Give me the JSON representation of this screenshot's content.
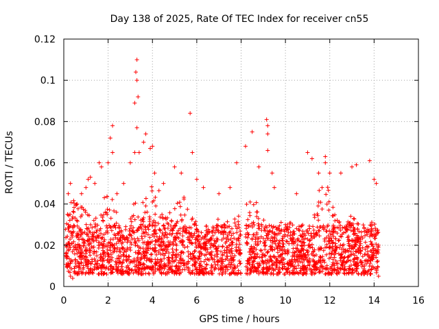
{
  "chart_data": {
    "type": "scatter",
    "title": "Day 138 of 2025, Rate Of TEC Index for receiver cn55",
    "xlabel": "GPS time / hours",
    "ylabel": "ROTI / TECUs",
    "xlim": [
      0,
      16
    ],
    "ylim": [
      0,
      0.12
    ],
    "xticks": [
      0,
      2,
      4,
      6,
      8,
      10,
      12,
      14,
      16
    ],
    "yticks": [
      0,
      0.02,
      0.04,
      0.06,
      0.08,
      0.1,
      0.12
    ],
    "xtick_labels": [
      "0",
      "2",
      "4",
      "6",
      "8",
      "10",
      "12",
      "14",
      "16"
    ],
    "ytick_labels": [
      "0",
      "0.02",
      "0.04",
      "0.06",
      "0.08",
      "0.1",
      "0.12"
    ],
    "grid": true,
    "marker": "+",
    "marker_color": "#ff0000",
    "data_gap_hours": [
      8.0,
      8.2
    ],
    "series": [
      {
        "name": "ROTI",
        "points": [
          [
            0.1,
            0.015
          ],
          [
            0.2,
            0.03
          ],
          [
            0.2,
            0.045
          ],
          [
            0.3,
            0.05
          ],
          [
            0.3,
            0.005
          ],
          [
            0.4,
            0.004
          ],
          [
            0.6,
            0.04
          ],
          [
            0.8,
            0.045
          ],
          [
            1.0,
            0.048
          ],
          [
            1.1,
            0.052
          ],
          [
            1.2,
            0.053
          ],
          [
            1.4,
            0.05
          ],
          [
            1.6,
            0.06
          ],
          [
            1.7,
            0.058
          ],
          [
            2.0,
            0.06
          ],
          [
            2.1,
            0.072
          ],
          [
            2.2,
            0.078
          ],
          [
            2.2,
            0.065
          ],
          [
            2.4,
            0.045
          ],
          [
            2.7,
            0.05
          ],
          [
            3.0,
            0.06
          ],
          [
            3.2,
            0.065
          ],
          [
            3.2,
            0.089
          ],
          [
            3.25,
            0.104
          ],
          [
            3.3,
            0.11
          ],
          [
            3.3,
            0.1
          ],
          [
            3.35,
            0.092
          ],
          [
            3.3,
            0.077
          ],
          [
            3.4,
            0.065
          ],
          [
            3.6,
            0.07
          ],
          [
            3.7,
            0.074
          ],
          [
            3.9,
            0.067
          ],
          [
            4.0,
            0.068
          ],
          [
            4.1,
            0.055
          ],
          [
            4.5,
            0.05
          ],
          [
            5.0,
            0.058
          ],
          [
            5.3,
            0.055
          ],
          [
            5.7,
            0.084
          ],
          [
            5.8,
            0.065
          ],
          [
            6.0,
            0.052
          ],
          [
            6.3,
            0.048
          ],
          [
            7.0,
            0.045
          ],
          [
            7.5,
            0.048
          ],
          [
            7.8,
            0.06
          ],
          [
            8.2,
            0.068
          ],
          [
            8.5,
            0.075
          ],
          [
            8.8,
            0.058
          ],
          [
            9.15,
            0.081
          ],
          [
            9.2,
            0.078
          ],
          [
            9.2,
            0.074
          ],
          [
            9.2,
            0.066
          ],
          [
            9.4,
            0.055
          ],
          [
            9.5,
            0.048
          ],
          [
            10.5,
            0.045
          ],
          [
            11.0,
            0.065
          ],
          [
            11.2,
            0.062
          ],
          [
            11.5,
            0.055
          ],
          [
            11.8,
            0.063
          ],
          [
            11.8,
            0.06
          ],
          [
            12.0,
            0.055
          ],
          [
            12.5,
            0.055
          ],
          [
            13.0,
            0.058
          ],
          [
            13.2,
            0.059
          ],
          [
            13.8,
            0.061
          ],
          [
            14.0,
            0.052
          ],
          [
            14.1,
            0.05
          ],
          [
            14.2,
            0.005
          ]
        ]
      }
    ]
  }
}
